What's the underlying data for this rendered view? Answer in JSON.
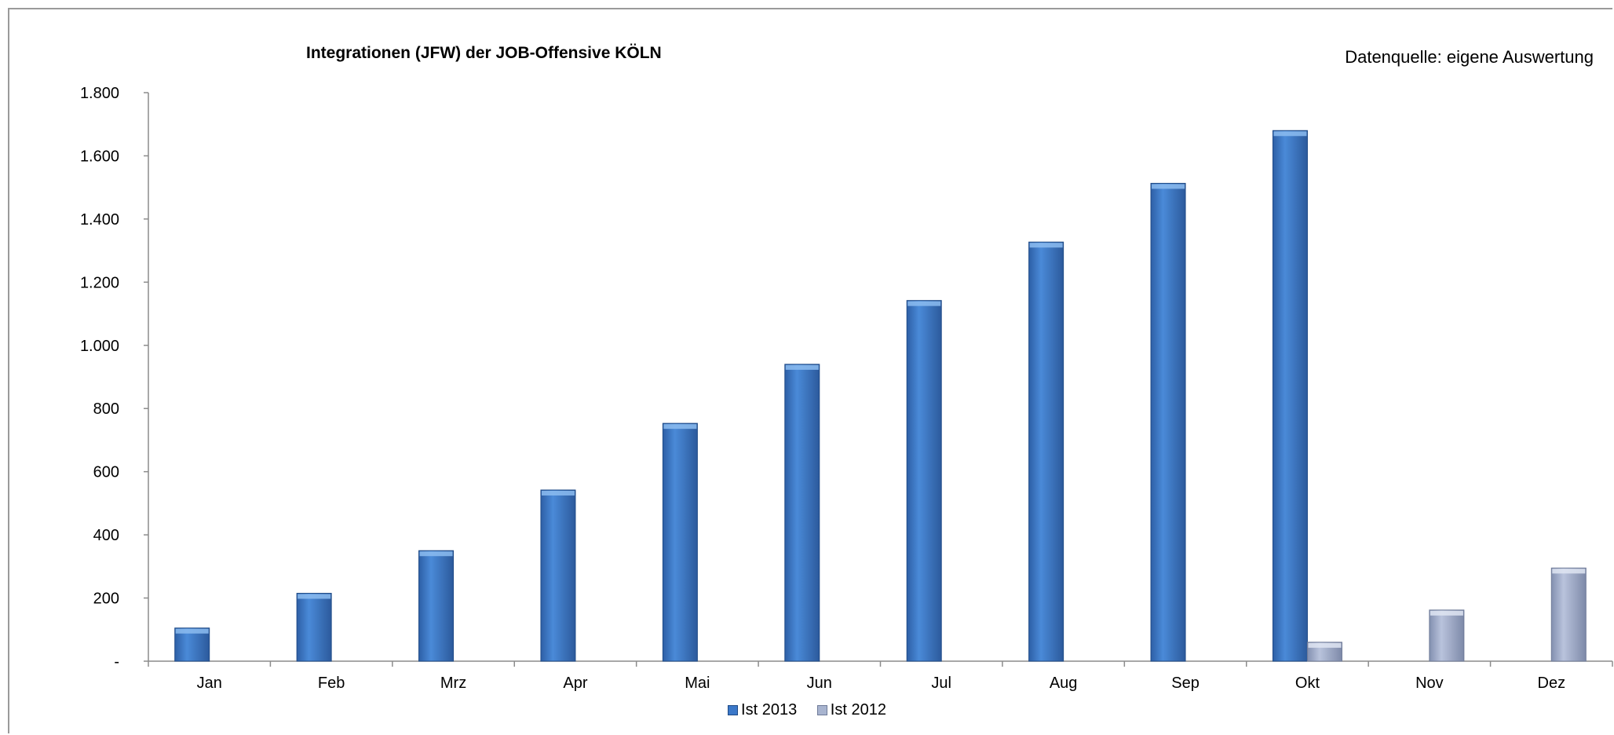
{
  "chart_data": {
    "type": "bar",
    "title": "Integrationen (JFW) der JOB-Offensive KÖLN",
    "annotation": "Datenquelle: eigene Auswertung",
    "categories": [
      "Jan",
      "Feb",
      "Mrz",
      "Apr",
      "Mai",
      "Jun",
      "Jul",
      "Aug",
      "Sep",
      "Okt",
      "Nov",
      "Dez"
    ],
    "series": [
      {
        "name": "Ist 2013",
        "color": "#3b78c9",
        "values": [
          105,
          215,
          350,
          542,
          753,
          940,
          1142,
          1327,
          1513,
          1680,
          null,
          null
        ]
      },
      {
        "name": "Ist 2012",
        "color": "#a8b4cf",
        "values": [
          null,
          null,
          null,
          null,
          null,
          null,
          null,
          null,
          null,
          60,
          162,
          295
        ]
      }
    ],
    "ylim": [
      0,
      1800
    ],
    "yticks": [
      0,
      200,
      400,
      600,
      800,
      1000,
      1200,
      1400,
      1600,
      1800
    ],
    "ytick_labels": [
      "-",
      "200",
      "400",
      "600",
      "800",
      "1.000",
      "1.200",
      "1.400",
      "1.600",
      "1.800"
    ],
    "legend_position": "bottom",
    "grid": false
  }
}
